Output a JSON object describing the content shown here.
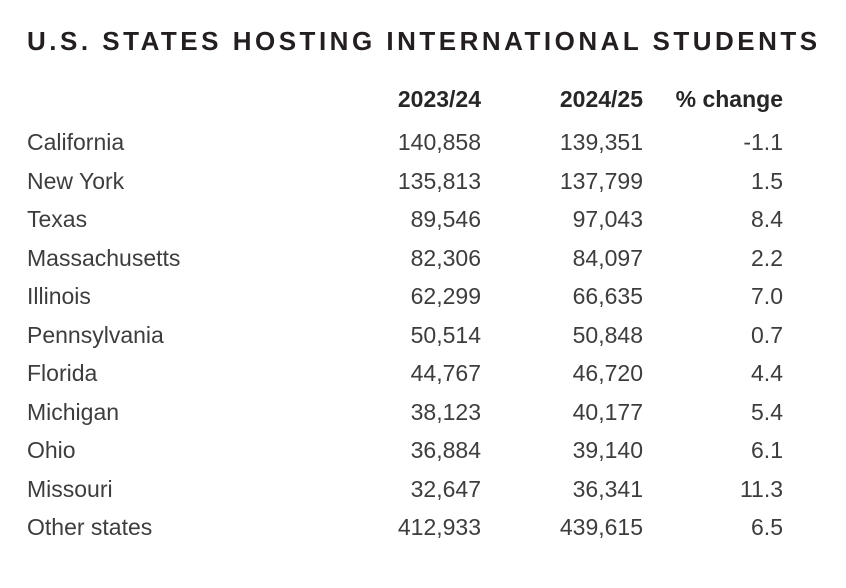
{
  "title": "U.S. STATES HOSTING INTERNATIONAL STUDENTS",
  "colors": {
    "background": "#ffffff",
    "title_text": "#231f20",
    "header_text": "#262626",
    "body_text": "#3d3d3d"
  },
  "table": {
    "headers": {
      "state": "",
      "year1": "2023/24",
      "year2": "2024/25",
      "pct": "% change"
    },
    "rows": [
      {
        "state": "California",
        "year1": "140,858",
        "year2": "139,351",
        "pct": "-1.1"
      },
      {
        "state": "New York",
        "year1": "135,813",
        "year2": "137,799",
        "pct": "1.5"
      },
      {
        "state": "Texas",
        "year1": "89,546",
        "year2": "97,043",
        "pct": "8.4"
      },
      {
        "state": "Massachusetts",
        "year1": "82,306",
        "year2": "84,097",
        "pct": "2.2"
      },
      {
        "state": "Illinois",
        "year1": "62,299",
        "year2": "66,635",
        "pct": "7.0"
      },
      {
        "state": "Pennsylvania",
        "year1": "50,514",
        "year2": "50,848",
        "pct": "0.7"
      },
      {
        "state": "Florida",
        "year1": "44,767",
        "year2": "46,720",
        "pct": "4.4"
      },
      {
        "state": "Michigan",
        "year1": "38,123",
        "year2": "40,177",
        "pct": "5.4"
      },
      {
        "state": "Ohio",
        "year1": "36,884",
        "year2": "39,140",
        "pct": "6.1"
      },
      {
        "state": "Missouri",
        "year1": "32,647",
        "year2": "36,341",
        "pct": "11.3"
      },
      {
        "state": "Other states",
        "year1": "412,933",
        "year2": "439,615",
        "pct": "6.5"
      }
    ]
  },
  "chart_data": {
    "type": "table",
    "title": "U.S. STATES HOSTING INTERNATIONAL STUDENTS",
    "categories": [
      "California",
      "New York",
      "Texas",
      "Massachusetts",
      "Illinois",
      "Pennsylvania",
      "Florida",
      "Michigan",
      "Ohio",
      "Missouri",
      "Other states"
    ],
    "series": [
      {
        "name": "2023/24",
        "values": [
          140858,
          135813,
          89546,
          82306,
          62299,
          50514,
          44767,
          38123,
          36884,
          32647,
          412933
        ]
      },
      {
        "name": "2024/25",
        "values": [
          139351,
          137799,
          97043,
          84097,
          66635,
          50848,
          46720,
          40177,
          39140,
          36341,
          439615
        ]
      },
      {
        "name": "% change",
        "values": [
          -1.1,
          1.5,
          8.4,
          2.2,
          7.0,
          0.7,
          4.4,
          5.4,
          6.1,
          11.3,
          6.5
        ]
      }
    ]
  }
}
